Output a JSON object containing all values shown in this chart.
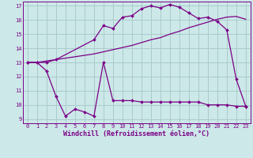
{
  "bg_color": "#cce8e8",
  "grid_color": "#aacccc",
  "line_color": "#7b0087",
  "xlabel": "Windchill (Refroidissement éolien,°C)",
  "xlim": [
    -0.5,
    23.5
  ],
  "ylim": [
    8.7,
    17.3
  ],
  "yticks": [
    9,
    10,
    11,
    12,
    13,
    14,
    15,
    16,
    17
  ],
  "xticks": [
    0,
    1,
    2,
    3,
    4,
    5,
    6,
    7,
    8,
    9,
    10,
    11,
    12,
    13,
    14,
    15,
    16,
    17,
    18,
    19,
    20,
    21,
    22,
    23
  ],
  "line1_x": [
    0,
    1,
    2,
    3,
    4,
    5,
    6,
    7,
    8,
    9,
    10,
    11,
    12,
    13,
    14,
    15,
    16,
    17,
    18,
    19,
    20,
    21,
    22,
    23
  ],
  "line1_y": [
    13.0,
    13.0,
    12.4,
    10.6,
    9.2,
    9.7,
    9.5,
    9.2,
    13.0,
    10.3,
    10.3,
    10.3,
    10.2,
    10.2,
    10.2,
    10.2,
    10.2,
    10.2,
    10.2,
    10.0,
    10.0,
    10.0,
    9.9,
    9.9
  ],
  "line2_x": [
    0,
    1,
    2,
    3,
    4,
    5,
    6,
    7,
    8,
    9,
    10,
    11,
    12,
    13,
    14,
    15,
    16,
    17,
    18,
    19,
    20,
    21,
    22,
    23
  ],
  "line2_y": [
    13.0,
    13.0,
    13.1,
    13.2,
    13.3,
    13.4,
    13.5,
    13.6,
    13.75,
    13.9,
    14.05,
    14.2,
    14.4,
    14.6,
    14.75,
    15.0,
    15.2,
    15.45,
    15.65,
    15.85,
    16.05,
    16.2,
    16.25,
    16.05
  ],
  "line3_x": [
    0,
    1,
    2,
    3,
    7,
    8,
    9,
    10,
    11,
    12,
    13,
    14,
    15,
    16,
    17,
    18,
    19,
    20,
    21,
    22,
    23
  ],
  "line3_y": [
    13.0,
    13.0,
    13.0,
    13.2,
    14.6,
    15.6,
    15.4,
    16.2,
    16.3,
    16.8,
    17.0,
    16.85,
    17.1,
    16.9,
    16.5,
    16.1,
    16.2,
    15.9,
    15.3,
    11.8,
    9.9
  ],
  "tick_fontsize": 5.0,
  "label_fontsize": 6.0,
  "lw": 0.9,
  "ms": 2.0
}
